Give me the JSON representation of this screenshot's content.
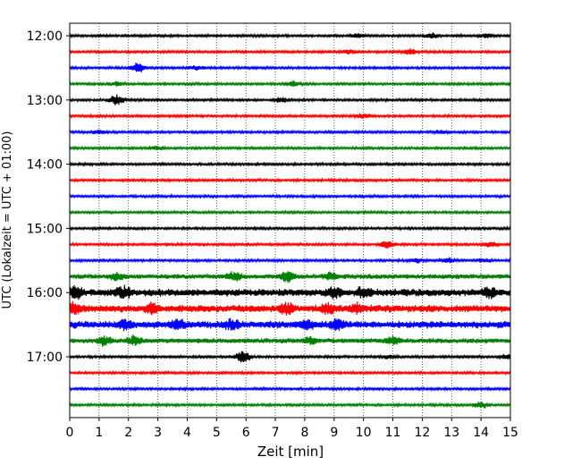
{
  "chart_data": {
    "type": "line",
    "subtype": "helicorder",
    "xlabel": "Zeit  [min]",
    "ylabel": "UTC (Lokalzeit = UTC + 01:00)",
    "xlim": [
      0,
      15
    ],
    "x_ticks": [
      "0",
      "1",
      "2",
      "3",
      "4",
      "5",
      "6",
      "7",
      "8",
      "9",
      "10",
      "11",
      "12",
      "13",
      "14",
      "15"
    ],
    "y_tick_labels": [
      "12:00",
      "13:00",
      "14:00",
      "15:00",
      "16:00",
      "17:00"
    ],
    "grid": {
      "vertical_dotted": true
    },
    "trace_colors": [
      "#000000",
      "#ff0000",
      "#0000ff",
      "#008000"
    ],
    "trace_minutes_per_line": 15,
    "traces": [
      {
        "start": "12:00",
        "amplitude": 1,
        "events": [
          {
            "x": 9.8,
            "amp": 2
          },
          {
            "x": 12.3,
            "amp": 3
          },
          {
            "x": 14.2,
            "amp": 2
          }
        ]
      },
      {
        "start": "12:15",
        "amplitude": 1,
        "events": [
          {
            "x": 9.5,
            "amp": 2
          },
          {
            "x": 11.6,
            "amp": 3
          }
        ]
      },
      {
        "start": "12:30",
        "amplitude": 1,
        "events": [
          {
            "x": 2.3,
            "amp": 6
          },
          {
            "x": 4.3,
            "amp": 2
          }
        ]
      },
      {
        "start": "12:45",
        "amplitude": 1,
        "events": [
          {
            "x": 1.6,
            "amp": 2
          },
          {
            "x": 7.6,
            "amp": 3
          }
        ]
      },
      {
        "start": "13:00",
        "amplitude": 1,
        "events": [
          {
            "x": 1.6,
            "amp": 6
          },
          {
            "x": 7.2,
            "amp": 3
          }
        ]
      },
      {
        "start": "13:15",
        "amplitude": 1,
        "events": [
          {
            "x": 10.0,
            "amp": 3
          }
        ]
      },
      {
        "start": "13:30",
        "amplitude": 1,
        "events": [
          {
            "x": 1.0,
            "amp": 2
          },
          {
            "x": 12.6,
            "amp": 2
          }
        ]
      },
      {
        "start": "13:45",
        "amplitude": 1,
        "events": [
          {
            "x": 3.0,
            "amp": 2
          }
        ]
      },
      {
        "start": "14:00",
        "amplitude": 1,
        "events": []
      },
      {
        "start": "14:15",
        "amplitude": 1,
        "events": []
      },
      {
        "start": "14:30",
        "amplitude": 1,
        "events": []
      },
      {
        "start": "14:45",
        "amplitude": 1,
        "events": []
      },
      {
        "start": "15:00",
        "amplitude": 1,
        "events": []
      },
      {
        "start": "15:15",
        "amplitude": 1,
        "events": [
          {
            "x": 10.8,
            "amp": 4
          },
          {
            "x": 14.3,
            "amp": 3
          }
        ]
      },
      {
        "start": "15:30",
        "amplitude": 1,
        "events": [
          {
            "x": 11.8,
            "amp": 2
          },
          {
            "x": 12.9,
            "amp": 3
          },
          {
            "x": 14.1,
            "amp": 2
          }
        ]
      },
      {
        "start": "15:45",
        "amplitude": 2,
        "events": [
          {
            "x": 1.6,
            "amp": 4
          },
          {
            "x": 5.6,
            "amp": 4
          },
          {
            "x": 7.4,
            "amp": 6
          },
          {
            "x": 8.9,
            "amp": 4
          }
        ]
      },
      {
        "start": "16:00",
        "amplitude": 3,
        "events": [
          {
            "x": 0.2,
            "amp": 6
          },
          {
            "x": 1.8,
            "amp": 6
          },
          {
            "x": 9.0,
            "amp": 5
          },
          {
            "x": 10.0,
            "amp": 5
          },
          {
            "x": 14.3,
            "amp": 5
          }
        ]
      },
      {
        "start": "16:15",
        "amplitude": 3,
        "events": [
          {
            "x": 0.1,
            "amp": 6
          },
          {
            "x": 2.8,
            "amp": 5
          },
          {
            "x": 7.4,
            "amp": 6
          },
          {
            "x": 8.8,
            "amp": 5
          },
          {
            "x": 9.8,
            "amp": 5
          }
        ]
      },
      {
        "start": "16:30",
        "amplitude": 3,
        "events": [
          {
            "x": 1.9,
            "amp": 5
          },
          {
            "x": 3.7,
            "amp": 5
          },
          {
            "x": 5.5,
            "amp": 5
          },
          {
            "x": 8.1,
            "amp": 5
          },
          {
            "x": 9.1,
            "amp": 5
          }
        ]
      },
      {
        "start": "16:45",
        "amplitude": 2,
        "events": [
          {
            "x": 1.2,
            "amp": 5
          },
          {
            "x": 2.2,
            "amp": 5
          },
          {
            "x": 8.2,
            "amp": 4
          },
          {
            "x": 11.0,
            "amp": 4
          }
        ]
      },
      {
        "start": "17:00",
        "amplitude": 1,
        "events": [
          {
            "x": 5.9,
            "amp": 7
          },
          {
            "x": 10.9,
            "amp": 2
          },
          {
            "x": 14.9,
            "amp": 3
          }
        ]
      },
      {
        "start": "17:15",
        "amplitude": 1,
        "events": []
      },
      {
        "start": "17:30",
        "amplitude": 1,
        "events": []
      },
      {
        "start": "17:45",
        "amplitude": 1,
        "events": [
          {
            "x": 14.0,
            "amp": 4
          }
        ]
      }
    ]
  }
}
